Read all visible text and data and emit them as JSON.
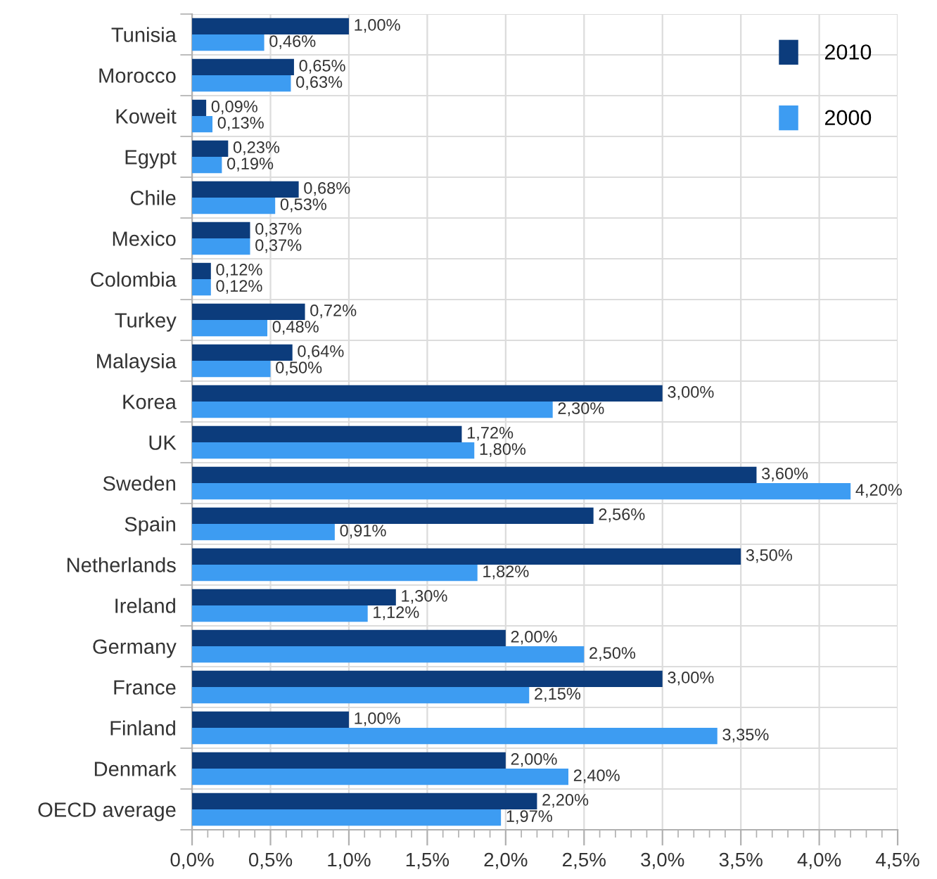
{
  "chart_data": {
    "type": "bar",
    "orientation": "horizontal",
    "categories": [
      "Tunisia",
      "Morocco",
      "Koweit",
      "Egypt",
      "Chile",
      "Mexico",
      "Colombia",
      "Turkey",
      "Malaysia",
      "Korea",
      "UK",
      "Sweden",
      "Spain",
      "Netherlands",
      "Ireland",
      "Germany",
      "France",
      "Finland",
      "Denmark",
      "OECD average"
    ],
    "series": [
      {
        "name": "2010",
        "color": "#0c3c7c",
        "values": [
          1.0,
          0.65,
          0.09,
          0.23,
          0.68,
          0.37,
          0.12,
          0.72,
          0.64,
          3.0,
          1.72,
          3.6,
          2.56,
          3.5,
          1.3,
          2.0,
          3.0,
          1.0,
          2.0,
          2.2
        ],
        "value_labels": [
          "1,00%",
          "0,65%",
          "0,09%",
          "0,23%",
          "0,68%",
          "0,37%",
          "0,12%",
          "0,72%",
          "0,64%",
          "3,00%",
          "1,72%",
          "3,60%",
          "2,56%",
          "3,50%",
          "1,30%",
          "2,00%",
          "3,00%",
          "1,00%",
          "2,00%",
          "2,20%"
        ]
      },
      {
        "name": "2000",
        "color": "#3d9cf2",
        "values": [
          0.46,
          0.63,
          0.13,
          0.19,
          0.53,
          0.37,
          0.12,
          0.48,
          0.5,
          2.3,
          1.8,
          4.2,
          0.91,
          1.82,
          1.12,
          2.5,
          2.15,
          3.35,
          2.4,
          1.97
        ],
        "value_labels": [
          "0,46%",
          "0,63%",
          "0,13%",
          "0,19%",
          "0,53%",
          "0,37%",
          "0,12%",
          "0,48%",
          "0,50%",
          "2,30%",
          "1,80%",
          "4,20%",
          "0,91%",
          "1,82%",
          "1,12%",
          "2,50%",
          "2,15%",
          "3,35%",
          "2,40%",
          "1,97%"
        ]
      }
    ],
    "xlim": [
      0,
      4.5
    ],
    "xticks": [
      {
        "value": 0,
        "label": "0,0%"
      },
      {
        "value": 0.5,
        "label": "0,5%"
      },
      {
        "value": 1.0,
        "label": "1,0%"
      },
      {
        "value": 1.5,
        "label": "1,5%"
      },
      {
        "value": 2.0,
        "label": "2,0%"
      },
      {
        "value": 2.5,
        "label": "2,5%"
      },
      {
        "value": 3.0,
        "label": "3,0%"
      },
      {
        "value": 3.5,
        "label": "3,5%"
      },
      {
        "value": 4.0,
        "label": "4,0%"
      },
      {
        "value": 4.5,
        "label": "4,5%"
      }
    ],
    "grid": true,
    "legend": "top right"
  }
}
